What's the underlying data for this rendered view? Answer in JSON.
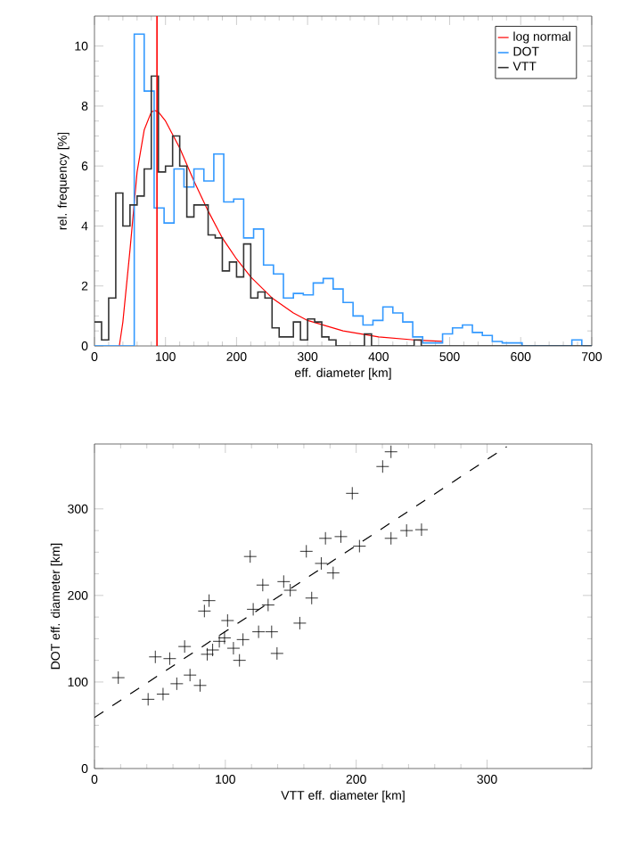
{
  "chart_data": [
    {
      "type": "histogram",
      "xlabel": "eff. diameter [km]",
      "ylabel": "rel. frequency [%]",
      "xlim": [
        0,
        700
      ],
      "ylim": [
        0,
        11
      ],
      "xticks": [
        0,
        100,
        200,
        300,
        400,
        500,
        600,
        700
      ],
      "yticks": [
        0,
        2,
        4,
        6,
        8,
        10
      ],
      "legend": "top right",
      "ref_lines": [
        {
          "axis": "x",
          "value": 88,
          "color": "#ff0000"
        }
      ],
      "series": [
        {
          "name": "log normal",
          "type": "line",
          "color": "#ff0000",
          "x": [
            35,
            40,
            50,
            60,
            70,
            80,
            85,
            90,
            100,
            120,
            140,
            160,
            180,
            200,
            220,
            250,
            280,
            300,
            350,
            400,
            450,
            490
          ],
          "values": [
            0,
            0.8,
            3.2,
            5.8,
            7.2,
            7.8,
            7.85,
            7.8,
            7.5,
            6.6,
            5.5,
            4.5,
            3.6,
            2.9,
            2.3,
            1.6,
            1.1,
            0.85,
            0.5,
            0.3,
            0.2,
            0.15
          ]
        },
        {
          "name": "DOT",
          "type": "histogram",
          "color": "#3399ff",
          "bins": [
            0,
            14,
            28,
            42,
            56,
            70,
            84,
            98,
            112,
            126,
            140,
            154,
            168,
            182,
            196,
            210,
            224,
            238,
            252,
            266,
            280,
            294,
            308,
            322,
            336,
            350,
            364,
            378,
            392,
            406,
            420,
            434,
            448,
            462,
            476,
            490,
            504,
            518,
            532,
            546,
            560,
            574,
            588,
            602,
            616,
            630,
            644,
            658,
            672,
            686,
            700
          ],
          "values": [
            0,
            0,
            0,
            0,
            10.4,
            8.5,
            4.6,
            4.1,
            5.9,
            5.3,
            5.9,
            5.5,
            6.4,
            4.8,
            4.9,
            3.6,
            3.9,
            2.7,
            2.4,
            1.6,
            1.75,
            1.7,
            2.1,
            2.25,
            1.9,
            1.45,
            1.0,
            0.7,
            0.85,
            1.3,
            1.1,
            0.8,
            0.3,
            0.1,
            0.1,
            0.4,
            0.6,
            0.7,
            0.45,
            0.35,
            0.15,
            0.1,
            0.1,
            0,
            0,
            0,
            0,
            0,
            0.2,
            0
          ]
        },
        {
          "name": "VTT",
          "type": "histogram",
          "color": "#333333",
          "bins": [
            0,
            10,
            20,
            30,
            40,
            50,
            60,
            70,
            80,
            90,
            100,
            110,
            120,
            130,
            140,
            150,
            160,
            170,
            180,
            190,
            200,
            210,
            220,
            230,
            240,
            250,
            260,
            270,
            280,
            290,
            300,
            310,
            320,
            330,
            340,
            350,
            360,
            370,
            380,
            390,
            400,
            410,
            420,
            430,
            440,
            450,
            460,
            470,
            480,
            490,
            500,
            510,
            520,
            530,
            540,
            550,
            560,
            570,
            580,
            590,
            600,
            610,
            620,
            630,
            640,
            650,
            660,
            670,
            680,
            690,
            700
          ],
          "values": [
            0.8,
            0.2,
            1.6,
            5.1,
            4.0,
            4.7,
            5.0,
            5.9,
            9.0,
            5.8,
            6.0,
            7.0,
            6.0,
            4.3,
            4.7,
            4.7,
            3.7,
            3.6,
            2.5,
            2.8,
            2.3,
            3.4,
            1.6,
            1.8,
            1.6,
            0.6,
            0.3,
            0.3,
            0.8,
            0.2,
            0.9,
            0.8,
            0.3,
            0.2,
            0,
            0,
            0,
            0,
            0.4,
            0,
            0,
            0,
            0,
            0,
            0,
            0.2,
            0,
            0,
            0,
            0,
            0,
            0,
            0,
            0,
            0,
            0,
            0,
            0,
            0,
            0,
            0,
            0,
            0,
            0,
            0,
            0,
            0,
            0,
            0,
            0
          ]
        }
      ]
    },
    {
      "type": "scatter",
      "xlabel": "VTT eff. diameter [km]",
      "ylabel": "DOT eff. diameter [km]",
      "xlim": [
        0,
        380
      ],
      "ylim": [
        0,
        375
      ],
      "xticks": [
        0,
        100,
        200,
        300
      ],
      "yticks": [
        0,
        100,
        200,
        300
      ],
      "series": [
        {
          "color": "#000000",
          "marker": "cross",
          "x": [
            226.6,
            220.2,
            197,
            176.5,
            188.3,
            161.9,
            173.3,
            119,
            182.4,
            202.5,
            226.6,
            238.5,
            249.9,
            144.6,
            149.6,
            128.6,
            166,
            87.6,
            84,
            132.7,
            121.3,
            101.7,
            156.9,
            113.5,
            125.4,
            135.4,
            95.4,
            99.4,
            106.2,
            110.8,
            139.5,
            90.3,
            86.2,
            68.9,
            46.5,
            57.5,
            18.2,
            73,
            62.9,
            80.7,
            41,
            52.4
          ],
          "values": [
            366,
            349,
            318,
            266,
            268,
            251,
            237,
            245,
            226,
            257,
            266,
            275,
            276,
            216,
            206,
            212,
            197,
            194,
            182,
            189,
            184,
            171,
            168,
            149,
            158,
            158,
            147,
            151,
            139,
            125,
            133,
            137,
            132,
            141,
            129,
            127,
            105,
            108,
            98,
            96,
            80,
            86
          ]
        },
        {
          "type": "line",
          "line_style": "dashed",
          "marker": "none",
          "color": "#000000",
          "x": [
            0,
            315
          ],
          "values": [
            59,
            372
          ]
        }
      ]
    }
  ]
}
